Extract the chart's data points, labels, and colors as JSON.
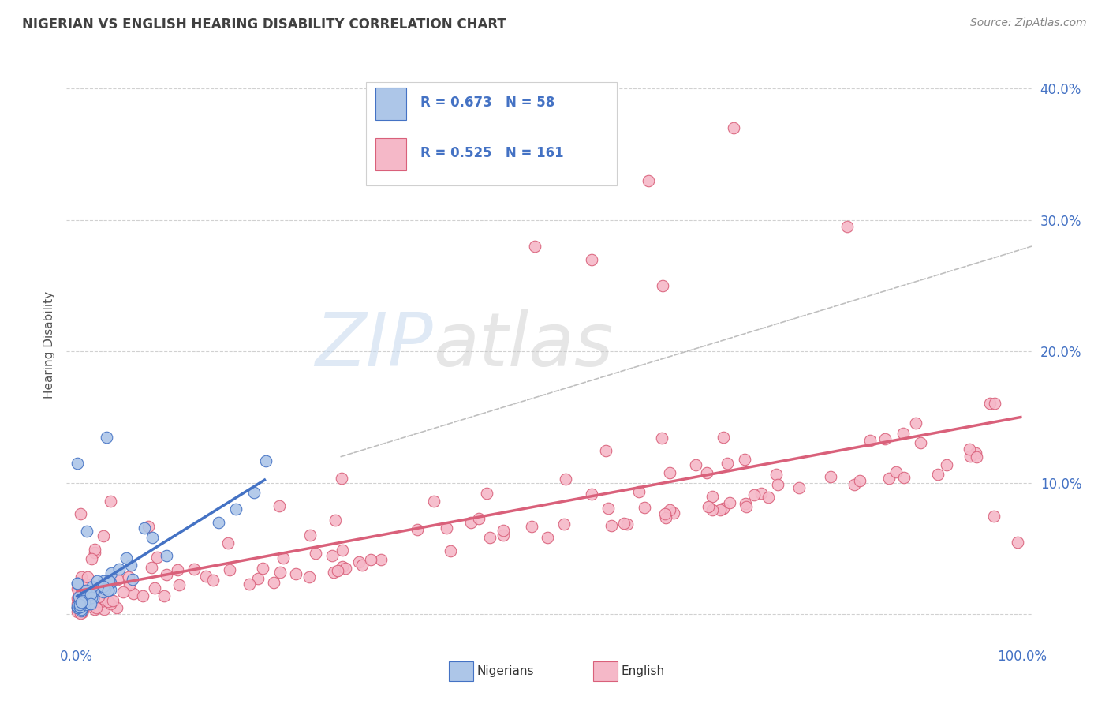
{
  "title": "NIGERIAN VS ENGLISH HEARING DISABILITY CORRELATION CHART",
  "source": "Source: ZipAtlas.com",
  "ylabel": "Hearing Disability",
  "xlim": [
    -0.01,
    1.01
  ],
  "ylim": [
    -0.02,
    0.43
  ],
  "xticks": [
    0.0,
    1.0
  ],
  "xticklabels": [
    "0.0%",
    "100.0%"
  ],
  "yticks": [
    0.0,
    0.1,
    0.2,
    0.3,
    0.4
  ],
  "yticklabels": [
    "",
    "10.0%",
    "20.0%",
    "30.0%",
    "40.0%"
  ],
  "nigerian_R": 0.673,
  "nigerian_N": 58,
  "english_R": 0.525,
  "english_N": 161,
  "nigerian_color": "#adc6e8",
  "nigerian_line_color": "#4472c4",
  "english_color": "#f5b8c8",
  "english_line_color": "#d9607a",
  "trendline_color": "#b0b0b0",
  "title_color": "#404040",
  "axis_label_color": "#4472c4",
  "watermark_blue": "#c5d8ee",
  "watermark_gray": "#c8c8c8",
  "background_color": "#ffffff",
  "grid_color": "#cccccc"
}
